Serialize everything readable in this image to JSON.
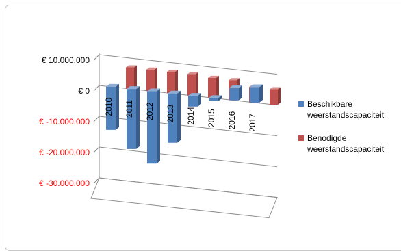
{
  "chart_data": {
    "type": "bar",
    "style": "3d-column",
    "categories": [
      "2010",
      "2011",
      "2012",
      "2013",
      "2014",
      "2015",
      "2016",
      "2017"
    ],
    "series": [
      {
        "name": "Beschikbare weerstandscapaciteit",
        "color": "#4f81bd",
        "values": [
          -14000000,
          -19500000,
          -23500000,
          -16000000,
          -3500000,
          -1000000,
          4000000,
          5000000
        ]
      },
      {
        "name": "Benodigde weerstandscapaciteit",
        "color": "#c0504d",
        "values": [
          7000000,
          7000000,
          7000000,
          7000000,
          6500000,
          6500000,
          5000000,
          5000000
        ]
      }
    ],
    "y_ticks": [
      {
        "value": 10000000,
        "label": "€ 10.000.000",
        "color": "#000000"
      },
      {
        "value": 0,
        "label": "€ 0",
        "color": "#000000"
      },
      {
        "value": -10000000,
        "label": "€ -10.000.000",
        "color": "#ff0000"
      },
      {
        "value": -20000000,
        "label": "€ -20.000.000",
        "color": "#ff0000"
      },
      {
        "value": -30000000,
        "label": "€ -30.000.000",
        "color": "#ff0000"
      }
    ],
    "ylim": [
      -30000000,
      10000000
    ],
    "grid": true,
    "legend_position": "right"
  }
}
